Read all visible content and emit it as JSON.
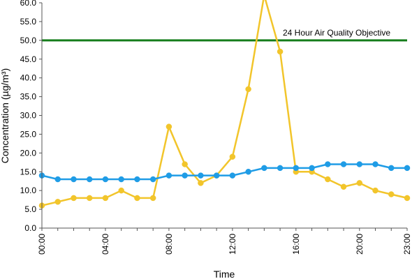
{
  "chart_data": {
    "type": "line",
    "xlabel": "Time",
    "ylabel": "Concentration (µg/m³)",
    "ylim": [
      0,
      60
    ],
    "yticks": [
      "0.0",
      "5.0",
      "10.0",
      "15.0",
      "20.0",
      "25.0",
      "30.0",
      "35.0",
      "40.0",
      "45.0",
      "50.0",
      "55.0",
      "60.0"
    ],
    "x": [
      0,
      1,
      2,
      3,
      4,
      5,
      6,
      7,
      8,
      9,
      10,
      11,
      12,
      13,
      14,
      15,
      16,
      17,
      18,
      19,
      20,
      21,
      22,
      23
    ],
    "xticks": [
      {
        "x": 0,
        "label": "00:00"
      },
      {
        "x": 4,
        "label": "04:00"
      },
      {
        "x": 8,
        "label": "08:00"
      },
      {
        "x": 12,
        "label": "12:00"
      },
      {
        "x": 16,
        "label": "16:00"
      },
      {
        "x": 20,
        "label": "20:00"
      },
      {
        "x": 23,
        "label": "23:00"
      }
    ],
    "grid": false,
    "series": [
      {
        "color": "#f2c52b",
        "values": [
          6,
          7,
          8,
          8,
          8,
          10,
          8,
          8,
          27,
          17,
          12,
          14,
          19,
          37,
          62,
          47,
          15,
          15,
          13,
          11,
          12,
          10,
          9,
          8
        ]
      },
      {
        "color": "#1f9ce6",
        "values": [
          14,
          13,
          13,
          13,
          13,
          13,
          13,
          13,
          14,
          14,
          14,
          14,
          14,
          15,
          16,
          16,
          16,
          16,
          17,
          17,
          17,
          17,
          16,
          16
        ]
      }
    ],
    "reference_line": {
      "y": 50,
      "label": "24 Hour Air Quality Objective",
      "color": "#157d1b"
    }
  }
}
